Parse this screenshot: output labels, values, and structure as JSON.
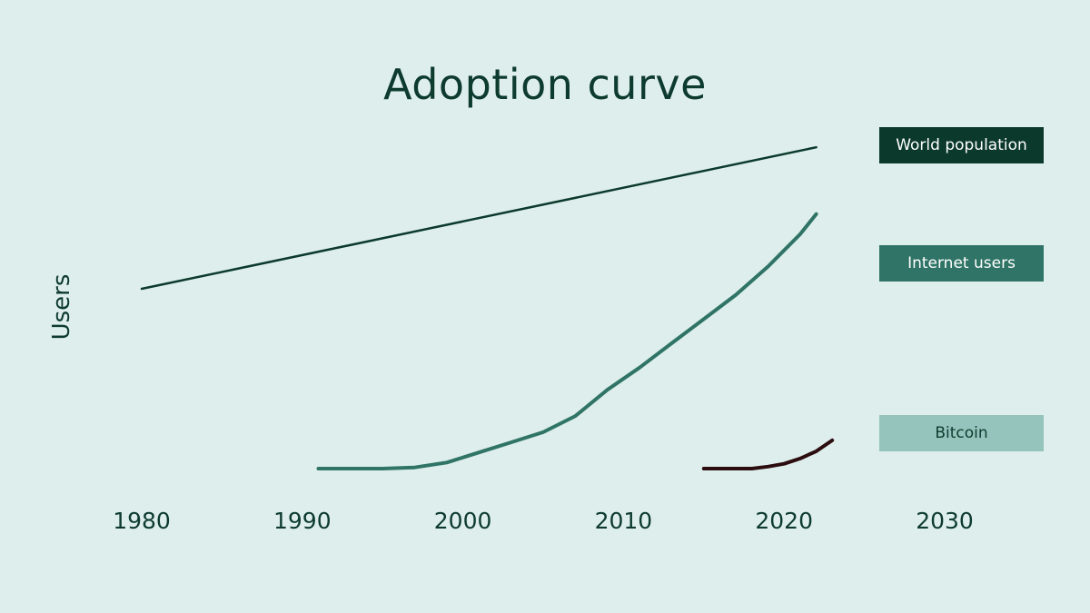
{
  "chart_data": {
    "type": "line",
    "title": "Adoption curve",
    "xlabel": "",
    "ylabel": "Users",
    "xlim": [
      1980,
      2030
    ],
    "ylim": [
      0,
      8000
    ],
    "x_ticks": [
      "1980",
      "1990",
      "2000",
      "2010",
      "2020",
      "2030"
    ],
    "grid": false,
    "legend_position": "right",
    "series": [
      {
        "name": "World population",
        "color": "#0b3a2c",
        "x": [
          1980,
          2022
        ],
        "y": [
          4450,
          7950
        ]
      },
      {
        "name": "Internet users",
        "color": "#2f7466",
        "x": [
          1991,
          1993,
          1995,
          1997,
          1999,
          2001,
          2003,
          2005,
          2007,
          2009,
          2011,
          2013,
          2015,
          2017,
          2019,
          2020,
          2021,
          2022
        ],
        "y": [
          0,
          0,
          0,
          30,
          150,
          400,
          650,
          900,
          1300,
          1950,
          2500,
          3100,
          3700,
          4300,
          5000,
          5400,
          5800,
          6300
        ]
      },
      {
        "name": "Bitcoin",
        "color": "#2b0d10",
        "x": [
          2015,
          2016,
          2017,
          2018,
          2019,
          2020,
          2021,
          2022,
          2023
        ],
        "y": [
          0,
          0,
          0,
          0,
          50,
          120,
          250,
          430,
          700
        ]
      }
    ],
    "legend": [
      {
        "label": "World population",
        "bg": "#0b3a2c",
        "fg": "#ffffff"
      },
      {
        "label": "Internet users",
        "bg": "#2f7466",
        "fg": "#ffffff"
      },
      {
        "label": "Bitcoin",
        "bg": "#95c4bc",
        "fg": "#0d3b2e"
      }
    ]
  }
}
